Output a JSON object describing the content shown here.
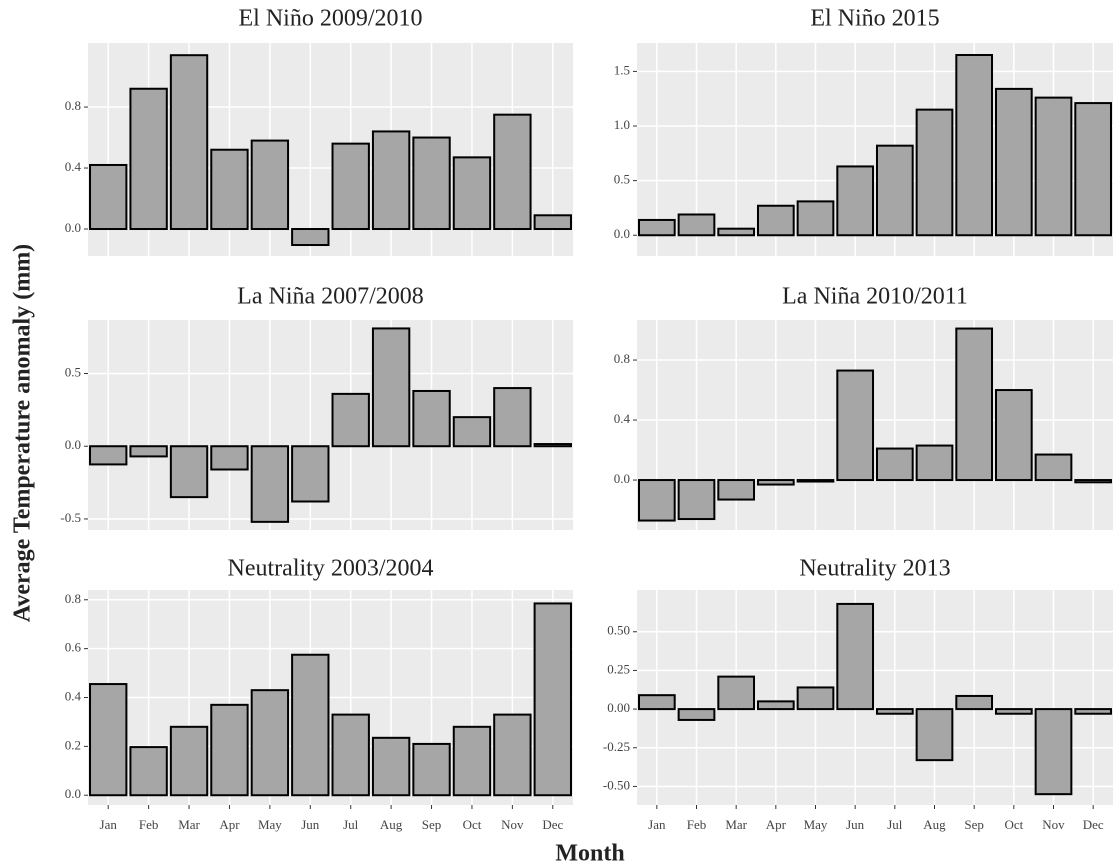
{
  "ylabel": "Average Temperature anomaly (mm)",
  "xlabel": "Month",
  "chart_data": [
    {
      "type": "bar",
      "title": "El Niño 2009/2010",
      "color": "#a6a6a6",
      "grid": true,
      "categories": [
        null,
        null,
        null,
        null,
        null,
        null,
        null,
        null,
        null,
        null,
        null,
        null
      ],
      "values": [
        0.42,
        0.92,
        1.14,
        0.52,
        0.58,
        -0.105,
        0.56,
        0.64,
        0.6,
        0.47,
        0.75,
        0.09
      ],
      "ylim": [
        -0.177,
        1.22
      ],
      "yticks": [
        {
          "value": 0,
          "label": "0.0"
        },
        0.4,
        0.8
      ]
    },
    {
      "type": "bar",
      "title": "El Niño 2015",
      "color": "#a6a6a6",
      "grid": true,
      "categories": [
        null,
        null,
        null,
        null,
        null,
        null,
        null,
        null,
        null,
        null,
        null,
        null
      ],
      "values": [
        0.14,
        0.19,
        0.06,
        0.27,
        0.31,
        0.63,
        0.82,
        1.15,
        1.65,
        1.34,
        1.26,
        1.21
      ],
      "ylim": [
        -0.19,
        1.76
      ],
      "yticks": [
        {
          "value": 0,
          "label": "0.0"
        },
        0.5,
        {
          "value": 1,
          "label": "1.0"
        },
        1.5
      ]
    },
    {
      "type": "bar",
      "title": "La Niña 2007/2008",
      "color": "#a6a6a6",
      "grid": true,
      "categories": [
        null,
        null,
        null,
        null,
        null,
        null,
        null,
        null,
        null,
        null,
        null,
        null
      ],
      "values": [
        -0.125,
        -0.07,
        -0.35,
        -0.16,
        -0.52,
        -0.38,
        0.36,
        0.81,
        0.38,
        0.2,
        0.4,
        0.015
      ],
      "ylim": [
        -0.576,
        0.868
      ],
      "yticks": [
        -0.5,
        {
          "value": 0,
          "label": "0.0"
        },
        0.5
      ]
    },
    {
      "type": "bar",
      "title": "La Niña 2010/2011",
      "color": "#a6a6a6",
      "grid": true,
      "categories": [
        null,
        null,
        null,
        null,
        null,
        null,
        null,
        null,
        null,
        null,
        null,
        null
      ],
      "values": [
        -0.27,
        -0.26,
        -0.13,
        -0.03,
        -0.01,
        0.73,
        0.21,
        0.23,
        1.01,
        0.6,
        0.17,
        -0.015
      ],
      "ylim": [
        -0.333,
        1.067
      ],
      "yticks": [
        {
          "value": 0,
          "label": "0.0"
        },
        0.4,
        0.8
      ]
    },
    {
      "type": "bar",
      "title": "Neutrality 2003/2004",
      "color": "#a6a6a6",
      "grid": true,
      "categories": [
        "Jan",
        "Feb",
        "Mar",
        "Apr",
        "May",
        "Jun",
        "Jul",
        "Aug",
        "Sep",
        "Oct",
        "Nov",
        "Dec"
      ],
      "values": [
        0.455,
        0.197,
        0.28,
        0.37,
        0.43,
        0.575,
        0.33,
        0.235,
        0.21,
        0.28,
        0.33,
        0.785
      ],
      "ylim": [
        -0.04,
        0.84
      ],
      "yticks": [
        {
          "value": 0,
          "label": "0.0"
        },
        0.2,
        0.4,
        0.6,
        0.8
      ]
    },
    {
      "type": "bar",
      "title": "Neutrality 2013",
      "color": "#a6a6a6",
      "grid": true,
      "categories": [
        "Jan",
        "Feb",
        "Mar",
        "Apr",
        "May",
        "Jun",
        "Jul",
        "Aug",
        "Sep",
        "Oct",
        "Nov",
        "Dec"
      ],
      "values": [
        0.09,
        -0.07,
        0.21,
        0.05,
        0.14,
        0.68,
        -0.03,
        -0.33,
        0.085,
        -0.03,
        -0.55,
        -0.03
      ],
      "ylim": [
        -0.62,
        0.77
      ],
      "yticks": [
        {
          "value": -0.5,
          "label": "-0.50"
        },
        -0.25,
        {
          "value": 0,
          "label": "0.00"
        },
        0.25,
        {
          "value": 0.5,
          "label": "0.50"
        }
      ]
    }
  ]
}
